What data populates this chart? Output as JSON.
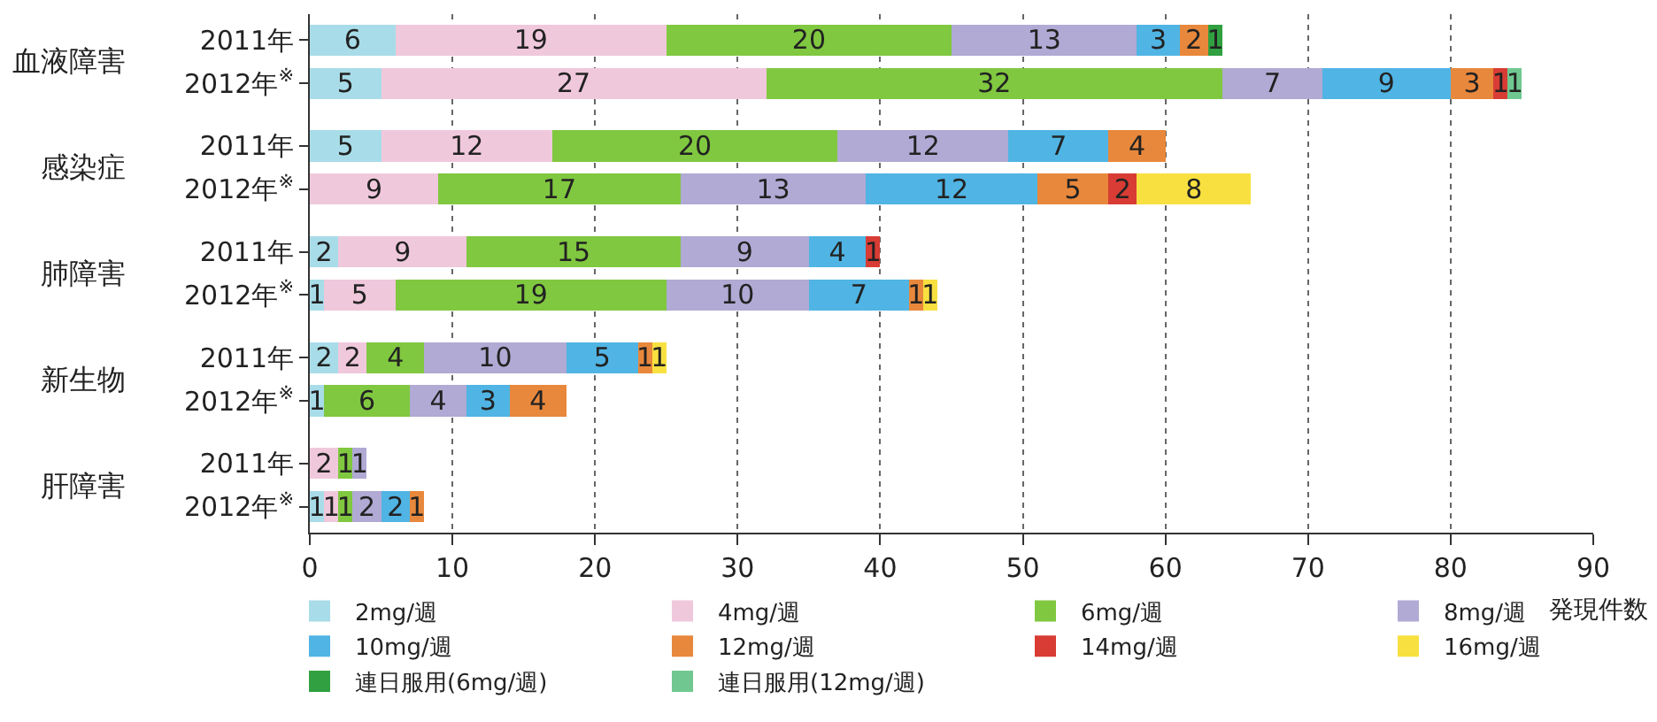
{
  "chart_data": {
    "type": "bar",
    "orientation": "horizontal",
    "stacked": true,
    "data_labels": true,
    "categories": [
      "2011年",
      "2012年$^{※}$",
      "2011年",
      "2012年$^{※}$",
      "2011年",
      "2012年$^{※}$",
      "2011年",
      "2012年$^{※}$",
      "2011年",
      "2012年$^{※}$"
    ],
    "annotations": [
      "血液障害",
      "感染症",
      "肺障害",
      "新生物",
      "肝障害"
    ],
    "xlabel": "発現件数",
    "xlim": [
      0,
      90
    ],
    "xticks": [
      0,
      10,
      20,
      30,
      40,
      50,
      60,
      70,
      80,
      90
    ],
    "grid": "x",
    "legend": "bottom",
    "series": [
      {
        "name": "2mg/週",
        "color": "#a8dce8",
        "values": [
          6,
          5,
          5,
          null,
          2,
          1,
          2,
          1,
          null,
          1
        ]
      },
      {
        "name": "4mg/週",
        "color": "#f0c8dc",
        "values": [
          19,
          27,
          12,
          9,
          9,
          5,
          2,
          null,
          2,
          1
        ]
      },
      {
        "name": "6mg/週",
        "color": "#80c840",
        "values": [
          20,
          32,
          20,
          17,
          15,
          19,
          4,
          6,
          1,
          1
        ]
      },
      {
        "name": "8mg/週",
        "color": "#b0aad4",
        "values": [
          13,
          7,
          12,
          13,
          9,
          10,
          10,
          4,
          1,
          2
        ]
      },
      {
        "name": "10mg/週",
        "color": "#50b4e4",
        "values": [
          3,
          9,
          7,
          12,
          4,
          7,
          5,
          3,
          null,
          2
        ]
      },
      {
        "name": "12mg/週",
        "color": "#e8883c",
        "values": [
          2,
          3,
          4,
          5,
          null,
          1,
          1,
          4,
          null,
          1
        ]
      },
      {
        "name": "14mg/週",
        "color": "#d83c34",
        "values": [
          null,
          1,
          null,
          2,
          1,
          null,
          null,
          null,
          null,
          null
        ]
      },
      {
        "name": "16mg/週",
        "color": "#f8e040",
        "values": [
          null,
          null,
          null,
          8,
          null,
          1,
          1,
          null,
          null,
          null
        ]
      },
      {
        "name": "連日服用(6mg/週)",
        "color": "#30a040",
        "values": [
          1,
          null,
          null,
          null,
          null,
          null,
          null,
          null,
          null,
          null
        ]
      },
      {
        "name": "連日服用(12mg/週)",
        "color": "#70c890",
        "values": [
          null,
          1,
          null,
          null,
          null,
          null,
          null,
          null,
          null,
          null
        ]
      }
    ]
  }
}
